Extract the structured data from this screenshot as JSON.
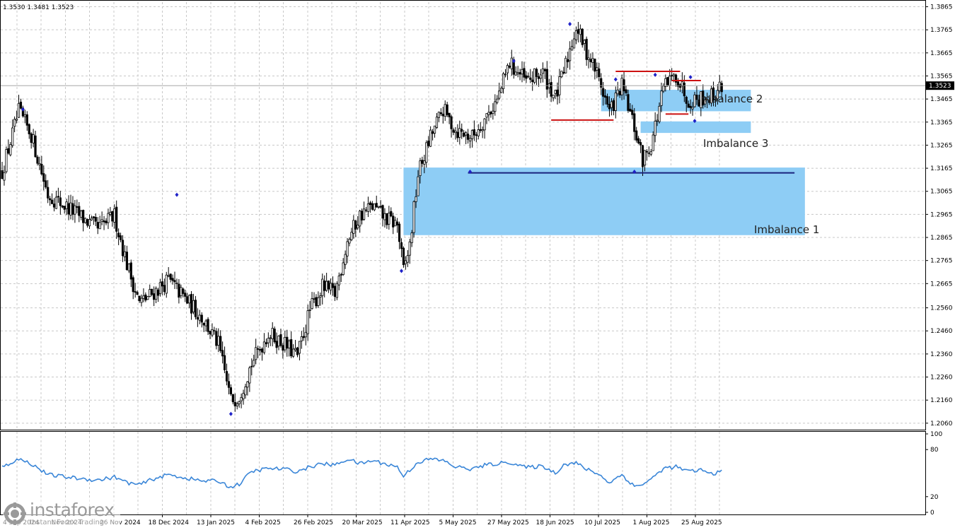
{
  "header": {
    "ohlc_text": "1.3530 1.3481 1.3523"
  },
  "logo": {
    "name": "instaforex",
    "tagline": "Instant Forex Trading",
    "icon": "gear-logo-icon"
  },
  "colors": {
    "bull": "#ffffff",
    "bear": "#000000",
    "wick": "#000000",
    "zone": "#8ecdf5",
    "level_blue": "#1a237e",
    "level_red": "#cc1111",
    "marker": "#1f22c8",
    "indicator": "#3a86d8",
    "grid": "#c8c8c8",
    "price_box": "#000000"
  },
  "chart_data": [
    {
      "type": "candlestick",
      "title": "",
      "ylim": [
        1.2035,
        1.3885
      ],
      "current_price": 1.3523,
      "y_ticks": [
        "1.3865",
        "1.3765",
        "1.3665",
        "1.3565",
        "1.3465",
        "1.3365",
        "1.3265",
        "1.3165",
        "1.3065",
        "1.2965",
        "1.2865",
        "1.2765",
        "1.2665",
        "1.2560",
        "1.2460",
        "1.2360",
        "1.2260",
        "1.2160",
        "1.2060"
      ],
      "x_ticks": [
        "4 Sep 2024",
        "Nov 2024",
        "26 Nov 2024",
        "18 Dec 2024",
        "13 Jan 2025",
        "4 Feb 2025",
        "26 Feb 2025",
        "20 Mar 2025",
        "11 Apr 2025",
        "5 May 2025",
        "27 May 2025",
        "18 Jun 2025",
        "10 Jul 2025",
        "1 Aug 2025",
        "25 Aug 2025"
      ],
      "waypoints": [
        [
          0,
          1.315
        ],
        [
          8,
          1.341
        ],
        [
          14,
          1.331
        ],
        [
          22,
          1.305
        ],
        [
          34,
          1.298
        ],
        [
          46,
          1.29
        ],
        [
          54,
          1.296
        ],
        [
          60,
          1.275
        ],
        [
          66,
          1.258
        ],
        [
          72,
          1.262
        ],
        [
          80,
          1.268
        ],
        [
          88,
          1.26
        ],
        [
          96,
          1.252
        ],
        [
          104,
          1.24
        ],
        [
          110,
          1.216
        ],
        [
          114,
          1.218
        ],
        [
          120,
          1.232
        ],
        [
          128,
          1.245
        ],
        [
          136,
          1.24
        ],
        [
          142,
          1.235
        ],
        [
          148,
          1.255
        ],
        [
          154,
          1.265
        ],
        [
          160,
          1.262
        ],
        [
          166,
          1.285
        ],
        [
          172,
          1.296
        ],
        [
          178,
          1.3
        ],
        [
          184,
          1.295
        ],
        [
          190,
          1.292
        ],
        [
          193,
          1.272
        ],
        [
          196,
          1.283
        ],
        [
          200,
          1.314
        ],
        [
          206,
          1.33
        ],
        [
          212,
          1.342
        ],
        [
          218,
          1.333
        ],
        [
          226,
          1.33
        ],
        [
          232,
          1.338
        ],
        [
          238,
          1.346
        ],
        [
          244,
          1.362
        ],
        [
          252,
          1.354
        ],
        [
          260,
          1.358
        ],
        [
          266,
          1.347
        ],
        [
          270,
          1.358
        ],
        [
          276,
          1.378
        ],
        [
          280,
          1.369
        ],
        [
          286,
          1.358
        ],
        [
          292,
          1.341
        ],
        [
          298,
          1.352
        ],
        [
          304,
          1.334
        ],
        [
          308,
          1.32
        ],
        [
          312,
          1.327
        ],
        [
          318,
          1.351
        ],
        [
          324,
          1.357
        ],
        [
          330,
          1.346
        ],
        [
          336,
          1.347
        ],
        [
          342,
          1.348
        ],
        [
          346,
          1.3523
        ]
      ],
      "swing_highs": [
        [
          10,
          1.342
        ],
        [
          84,
          1.305
        ],
        [
          246,
          1.363
        ],
        [
          273,
          1.379
        ],
        [
          295,
          1.355
        ],
        [
          314,
          1.357
        ],
        [
          331,
          1.356
        ]
      ],
      "swing_lows": [
        [
          110,
          1.21
        ],
        [
          192,
          1.272
        ],
        [
          225,
          1.315
        ],
        [
          304,
          1.315
        ],
        [
          333,
          1.337
        ]
      ],
      "zones": [
        {
          "name": "Imbalance 1",
          "x0": 193,
          "x1": 386,
          "y_top": 1.3168,
          "y_bottom": 1.2875
        },
        {
          "name": "Imbalance 2",
          "x0": 288,
          "x1": 360,
          "y_top": 1.3505,
          "y_bottom": 1.3412
        },
        {
          "name": "Imbalance 3",
          "x0": 307,
          "x1": 360,
          "y_top": 1.3368,
          "y_bottom": 1.3318
        }
      ],
      "levels": [
        {
          "color": "blue",
          "price": 1.3145,
          "x0": 224,
          "x1": 381
        },
        {
          "color": "red",
          "price": 1.3374,
          "x0": 264,
          "x1": 294
        },
        {
          "color": "red",
          "price": 1.3585,
          "x0": 295,
          "x1": 326
        },
        {
          "color": "red",
          "price": 1.3545,
          "x0": 322,
          "x1": 336
        },
        {
          "color": "red",
          "price": 1.34,
          "x0": 319,
          "x1": 330
        }
      ],
      "candle_count": 347
    },
    {
      "type": "line",
      "title": "",
      "ylim": [
        0,
        100
      ],
      "y_ticks": [
        "100",
        "80",
        "20",
        "0"
      ],
      "series": [
        {
          "waypoints": [
            [
              0,
              58
            ],
            [
              8,
              68
            ],
            [
              14,
              62
            ],
            [
              22,
              48
            ],
            [
              34,
              44
            ],
            [
              46,
              41
            ],
            [
              54,
              45
            ],
            [
              60,
              38
            ],
            [
              66,
              35
            ],
            [
              72,
              42
            ],
            [
              80,
              48
            ],
            [
              88,
              44
            ],
            [
              96,
              40
            ],
            [
              104,
              40
            ],
            [
              110,
              32
            ],
            [
              114,
              36
            ],
            [
              120,
              52
            ],
            [
              128,
              56
            ],
            [
              136,
              55
            ],
            [
              142,
              52
            ],
            [
              148,
              58
            ],
            [
              154,
              62
            ],
            [
              160,
              60
            ],
            [
              166,
              68
            ],
            [
              172,
              62
            ],
            [
              178,
              66
            ],
            [
              184,
              62
            ],
            [
              190,
              58
            ],
            [
              193,
              46
            ],
            [
              196,
              54
            ],
            [
              200,
              64
            ],
            [
              206,
              68
            ],
            [
              212,
              66
            ],
            [
              218,
              58
            ],
            [
              226,
              55
            ],
            [
              232,
              60
            ],
            [
              238,
              62
            ],
            [
              244,
              64
            ],
            [
              252,
              57
            ],
            [
              260,
              59
            ],
            [
              266,
              50
            ],
            [
              270,
              61
            ],
            [
              276,
              63
            ],
            [
              280,
              56
            ],
            [
              286,
              50
            ],
            [
              292,
              38
            ],
            [
              298,
              48
            ],
            [
              304,
              33
            ],
            [
              308,
              36
            ],
            [
              312,
              42
            ],
            [
              318,
              56
            ],
            [
              324,
              58
            ],
            [
              330,
              52
            ],
            [
              336,
              54
            ],
            [
              342,
              48
            ],
            [
              346,
              56
            ]
          ]
        }
      ]
    }
  ]
}
